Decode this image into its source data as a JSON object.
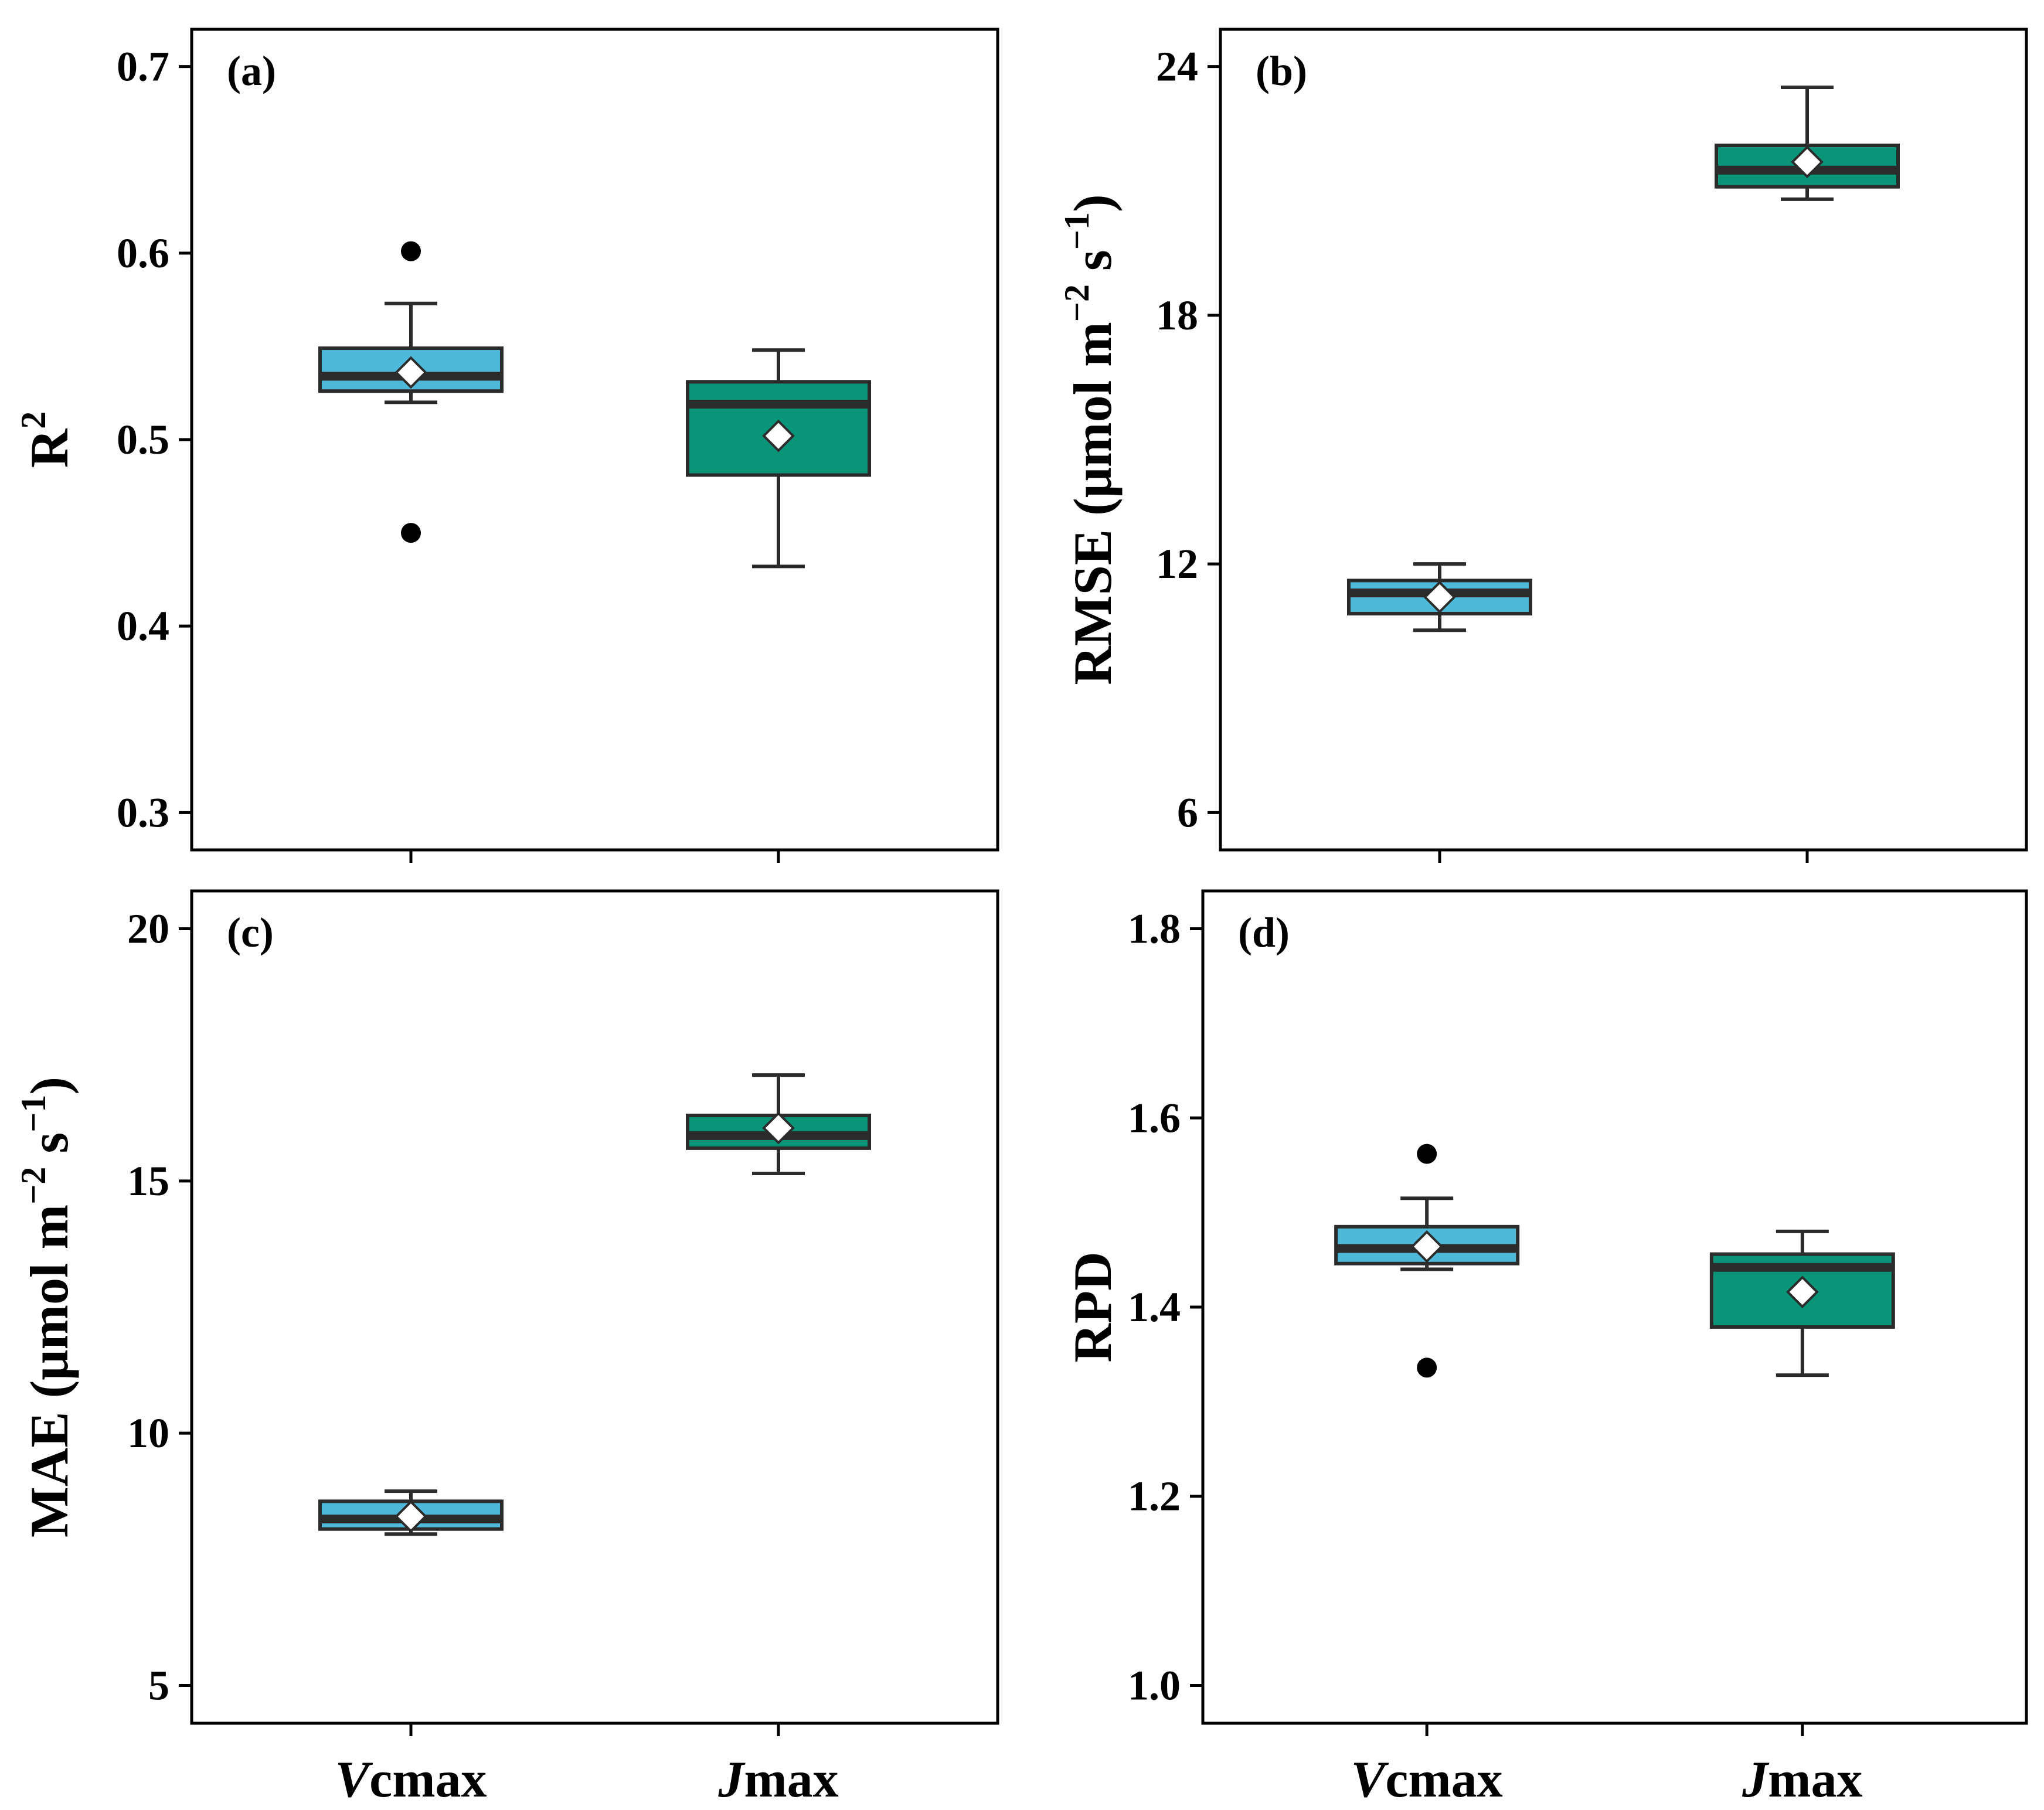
{
  "colors": {
    "vcmax": "#4db8d8",
    "jmax": "#0a9478",
    "line": "#2b2b2b",
    "frame": "#000000"
  },
  "categories": [
    {
      "italic": "V",
      "rest": "cmax"
    },
    {
      "italic": "J",
      "rest": "max"
    }
  ],
  "chart_data": [
    {
      "type": "box",
      "panel": "(a)",
      "ylabel": "R",
      "ylabel_sup": "2",
      "ylabel_unit": "",
      "ylim": [
        0.28,
        0.72
      ],
      "yticks": [
        0.3,
        0.4,
        0.5,
        0.6,
        0.7
      ],
      "ytick_labels": [
        "0.3",
        "0.4",
        "0.5",
        "0.6",
        "0.7"
      ],
      "series": [
        {
          "name": "Vcmax",
          "whisker_low": 0.52,
          "q1": 0.526,
          "median": 0.534,
          "q3": 0.549,
          "whisker_high": 0.573,
          "mean": 0.536,
          "outliers": [
            0.601,
            0.45
          ]
        },
        {
          "name": "Jmax",
          "whisker_low": 0.432,
          "q1": 0.481,
          "median": 0.519,
          "q3": 0.531,
          "whisker_high": 0.548,
          "mean": 0.502,
          "outliers": []
        }
      ]
    },
    {
      "type": "box",
      "panel": "(b)",
      "ylabel": "RMSE (μmol m",
      "ylabel_sup": "−2",
      "ylabel_mid": " s",
      "ylabel_sup2": "−1",
      "ylabel_end": ")",
      "ylim": [
        5.1,
        24.9
      ],
      "yticks": [
        6,
        12,
        18,
        24
      ],
      "ytick_labels": [
        "6",
        "12",
        "18",
        "24"
      ],
      "series": [
        {
          "name": "Vcmax",
          "whisker_low": 10.4,
          "q1": 10.8,
          "median": 11.3,
          "q3": 11.6,
          "whisker_high": 12.0,
          "mean": 11.2,
          "outliers": []
        },
        {
          "name": "Jmax",
          "whisker_low": 20.8,
          "q1": 21.1,
          "median": 21.5,
          "q3": 22.1,
          "whisker_high": 23.5,
          "mean": 21.7,
          "outliers": []
        }
      ]
    },
    {
      "type": "box",
      "panel": "(c)",
      "ylabel": "MAE (μmol m",
      "ylabel_sup": "−2",
      "ylabel_mid": " s",
      "ylabel_sup2": "−1",
      "ylabel_end": ")",
      "ylim": [
        4.25,
        20.75
      ],
      "yticks": [
        5,
        10,
        15,
        20
      ],
      "ytick_labels": [
        "5",
        "10",
        "15",
        "20"
      ],
      "series": [
        {
          "name": "Vcmax",
          "whisker_low": 8.0,
          "q1": 8.1,
          "median": 8.3,
          "q3": 8.65,
          "whisker_high": 8.85,
          "mean": 8.35,
          "outliers": []
        },
        {
          "name": "Jmax",
          "whisker_low": 15.15,
          "q1": 15.65,
          "median": 15.9,
          "q3": 16.3,
          "whisker_high": 17.1,
          "mean": 16.05,
          "outliers": []
        }
      ]
    },
    {
      "type": "box",
      "panel": "(d)",
      "ylabel": "RPD",
      "ylabel_sup": "",
      "ylabel_unit": "",
      "ylim": [
        0.96,
        1.84
      ],
      "yticks": [
        1.0,
        1.2,
        1.4,
        1.6,
        1.8
      ],
      "ytick_labels": [
        "1.0",
        "1.2",
        "1.4",
        "1.6",
        "1.8"
      ],
      "series": [
        {
          "name": "Vcmax",
          "whisker_low": 1.44,
          "q1": 1.446,
          "median": 1.462,
          "q3": 1.485,
          "whisker_high": 1.515,
          "mean": 1.464,
          "outliers": [
            1.562,
            1.336
          ]
        },
        {
          "name": "Jmax",
          "whisker_low": 1.328,
          "q1": 1.379,
          "median": 1.442,
          "q3": 1.456,
          "whisker_high": 1.48,
          "mean": 1.416,
          "outliers": []
        }
      ]
    }
  ]
}
